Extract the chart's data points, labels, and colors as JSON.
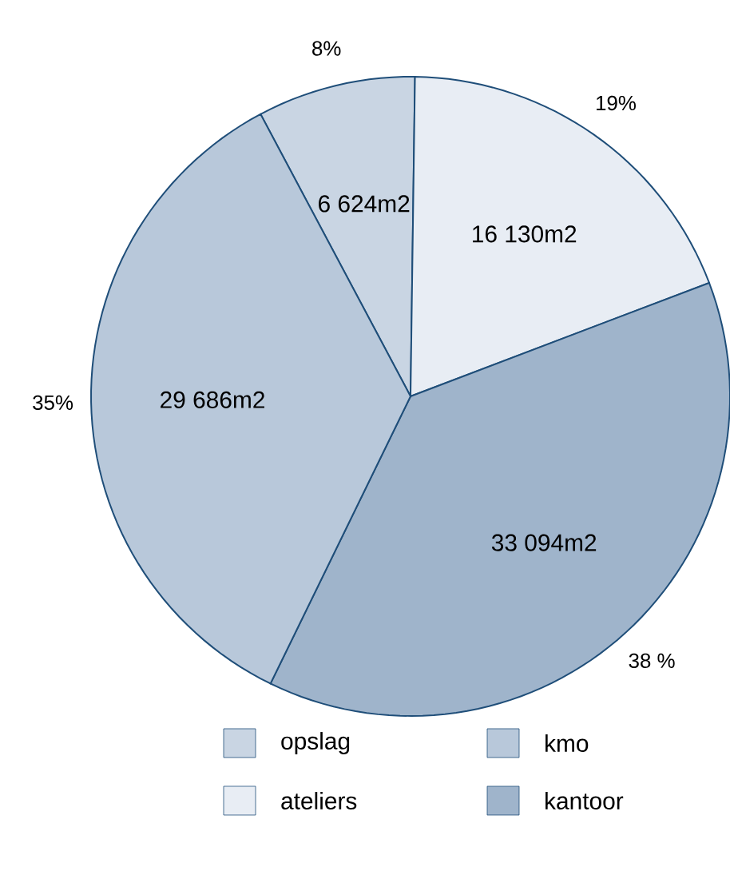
{
  "chart_data": {
    "type": "pie",
    "categories": [
      "opslag",
      "ateliers",
      "kantoor",
      "kmo"
    ],
    "values": [
      8,
      19,
      38,
      35
    ],
    "value_labels": [
      "8%",
      "19%",
      "38 %",
      "35%"
    ],
    "colors": [
      "#c9d5e3",
      "#e8edf4",
      "#9fb4cb",
      "#b8c8da"
    ],
    "annotations": [
      "6 624m2",
      "16 130m2",
      "33 094m2",
      "29 686m2"
    ],
    "legend": "bottom"
  }
}
